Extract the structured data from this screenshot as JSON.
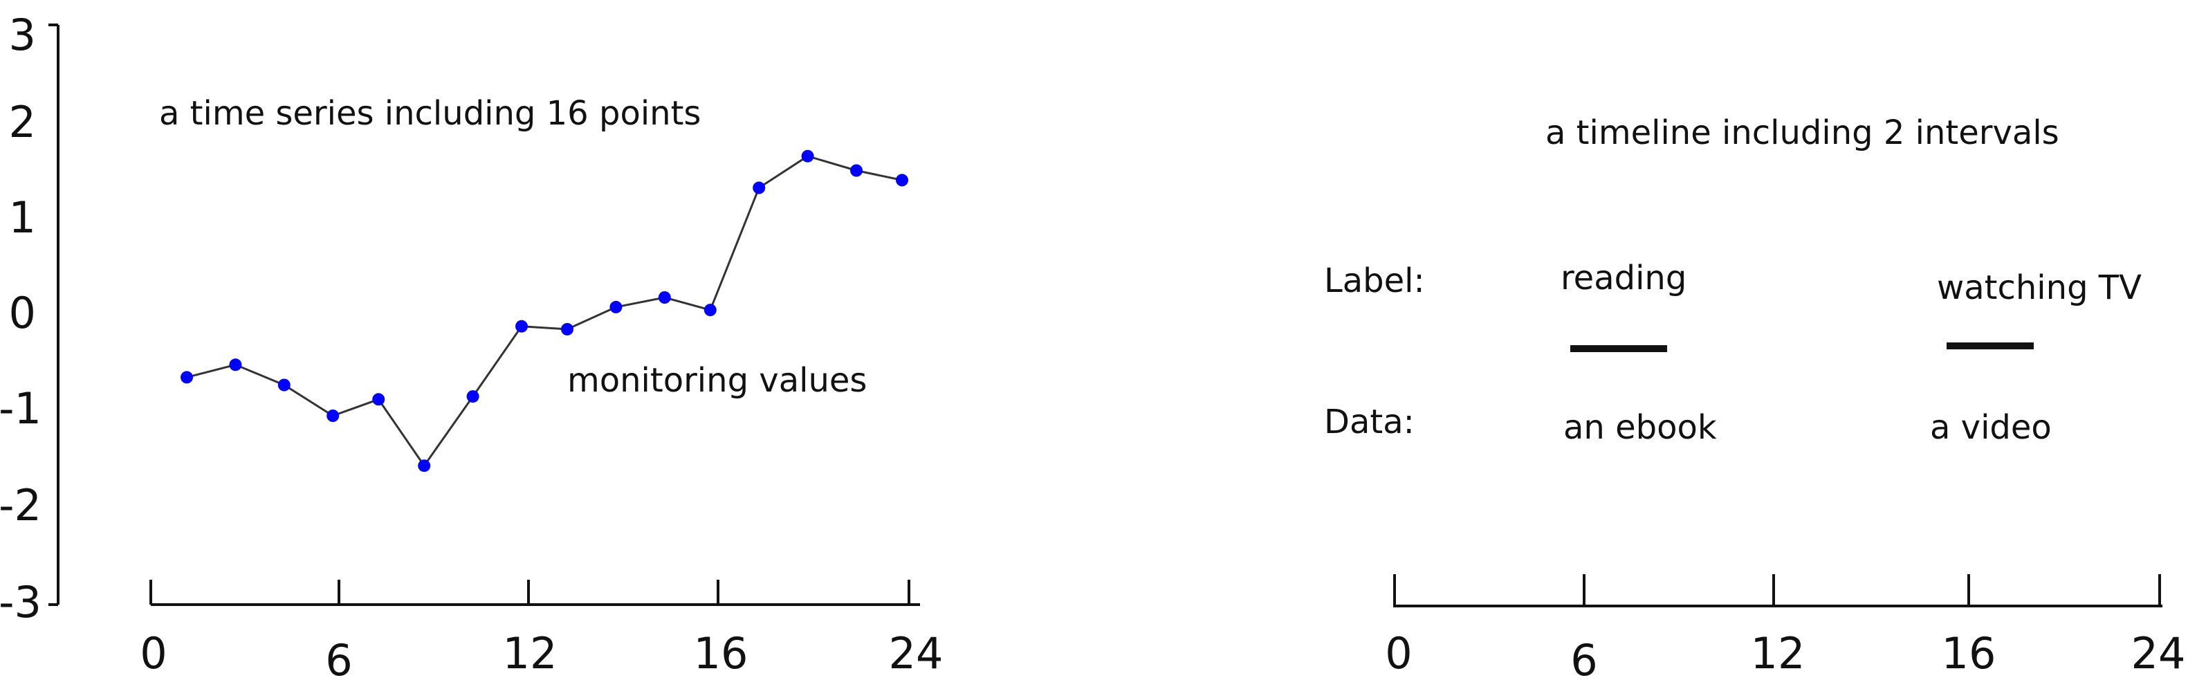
{
  "ts_panel": {
    "caption": "a time series including 16 points",
    "values_label": "monitoring values",
    "y_ticks": [
      "3",
      "2",
      "1",
      "0",
      "-1",
      "-2",
      "-3"
    ],
    "x_ticks": [
      "0",
      "6",
      "12",
      "16",
      "24"
    ]
  },
  "tl_panel": {
    "caption": "a timeline including 2 intervals",
    "row_label_title": "Label:",
    "row_data_title": "Data:",
    "x_ticks": [
      "0",
      "6",
      "12",
      "16",
      "24"
    ],
    "intervals": [
      {
        "label": "reading",
        "data": "an ebook"
      },
      {
        "label": "watching TV",
        "data": "a video"
      }
    ]
  },
  "chart_data": {
    "type": "line",
    "ylim": [
      -3,
      3
    ],
    "xlim": [
      0,
      24
    ],
    "x": [
      0.5,
      2.1,
      3.7,
      5.3,
      6.8,
      8.3,
      9.9,
      11.5,
      13.0,
      14.6,
      16.2,
      17.7,
      19.3,
      20.9,
      22.5,
      24.0
    ],
    "values": [
      -0.65,
      -0.52,
      -0.73,
      -1.05,
      -0.88,
      -1.57,
      -0.85,
      -0.12,
      -0.15,
      0.08,
      0.18,
      0.05,
      1.32,
      1.65,
      1.5,
      1.4
    ],
    "series_color": "#0000ff",
    "line_color": "#333333"
  },
  "colors": {
    "ink": "#111111",
    "point": "#0000ff"
  }
}
